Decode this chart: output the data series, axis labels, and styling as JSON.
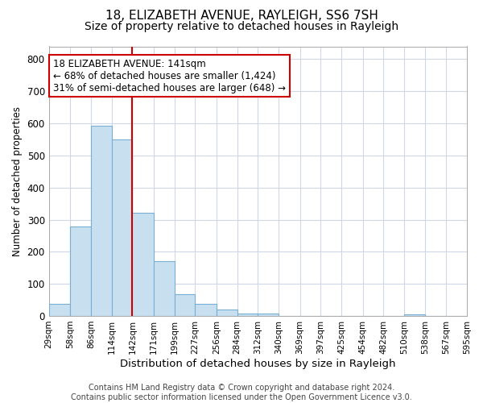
{
  "title": "18, ELIZABETH AVENUE, RAYLEIGH, SS6 7SH",
  "subtitle": "Size of property relative to detached houses in Rayleigh",
  "xlabel": "Distribution of detached houses by size in Rayleigh",
  "ylabel": "Number of detached properties",
  "bar_color": "#c8dff0",
  "bar_edge_color": "#7aafd4",
  "grid_color": "#d0d8e8",
  "background_color": "#ffffff",
  "annotation_box_color": "#ffffff",
  "annotation_box_edge": "#cc0000",
  "vline_color": "#cc0000",
  "vline_x": 142,
  "bin_edges": [
    29,
    58,
    86,
    114,
    142,
    171,
    199,
    227,
    256,
    284,
    312,
    340,
    369,
    397,
    425,
    454,
    482,
    510,
    538,
    567,
    595
  ],
  "bin_labels": [
    "29sqm",
    "58sqm",
    "86sqm",
    "114sqm",
    "142sqm",
    "171sqm",
    "199sqm",
    "227sqm",
    "256sqm",
    "284sqm",
    "312sqm",
    "340sqm",
    "369sqm",
    "397sqm",
    "425sqm",
    "454sqm",
    "482sqm",
    "510sqm",
    "538sqm",
    "567sqm",
    "595sqm"
  ],
  "counts": [
    38,
    278,
    592,
    550,
    322,
    170,
    67,
    38,
    20,
    8,
    8,
    0,
    0,
    0,
    0,
    0,
    0,
    5,
    0,
    0
  ],
  "ylim": [
    0,
    840
  ],
  "yticks": [
    0,
    100,
    200,
    300,
    400,
    500,
    600,
    700,
    800
  ],
  "ann_line1": "18 ELIZABETH AVENUE: 141sqm",
  "ann_line2": "← 68% of detached houses are smaller (1,424)",
  "ann_line3": "31% of semi-detached houses are larger (648) →",
  "footer_text": "Contains HM Land Registry data © Crown copyright and database right 2024.\nContains public sector information licensed under the Open Government Licence v3.0.",
  "title_fontsize": 11,
  "subtitle_fontsize": 10,
  "xlabel_fontsize": 9.5,
  "ylabel_fontsize": 8.5,
  "annotation_fontsize": 8.5,
  "footer_fontsize": 7,
  "ytick_fontsize": 8.5,
  "xtick_fontsize": 7.5
}
